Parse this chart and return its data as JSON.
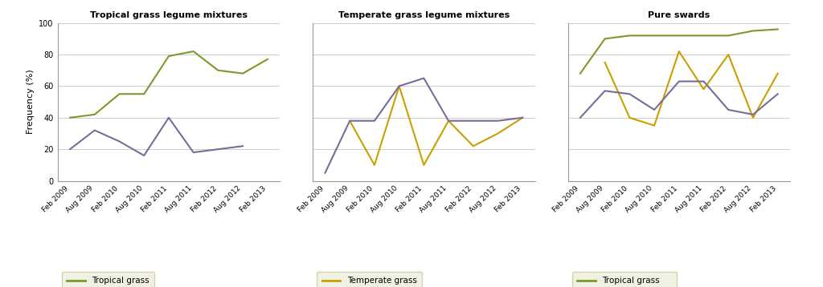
{
  "x_labels": [
    "Feb 2009",
    "Aug 2009",
    "Feb 2010",
    "Aug 2010",
    "Feb 2011",
    "Aug 2011",
    "Feb 2012",
    "Aug 2012",
    "Feb 2013"
  ],
  "x_positions": [
    0,
    1,
    2,
    3,
    4,
    5,
    6,
    7,
    8
  ],
  "subplot1": {
    "title": "Tropical grass legume mixtures",
    "tropical_grass": {
      "x": [
        0,
        1,
        2,
        3,
        4,
        5,
        6,
        7,
        8
      ],
      "y": [
        40,
        42,
        55,
        55,
        79,
        82,
        70,
        68,
        77
      ]
    },
    "lucerne": {
      "x": [
        0,
        1,
        2,
        3,
        4,
        5,
        6,
        7
      ],
      "y": [
        20,
        32,
        25,
        16,
        40,
        18,
        20,
        22
      ]
    }
  },
  "subplot2": {
    "title": "Temperate grass legume mixtures",
    "temperate_grass": {
      "x": [
        1,
        2,
        3,
        4,
        5,
        6,
        7,
        8
      ],
      "y": [
        38,
        10,
        60,
        10,
        38,
        22,
        30,
        40
      ]
    },
    "lucerne": {
      "x": [
        0,
        1,
        2,
        3,
        4,
        5,
        6,
        7,
        8
      ],
      "y": [
        5,
        38,
        38,
        60,
        65,
        38,
        38,
        38,
        40
      ]
    }
  },
  "subplot3": {
    "title": "Pure swards",
    "tropical_grass": {
      "x": [
        0,
        1,
        2,
        3,
        4,
        5,
        6,
        7,
        8
      ],
      "y": [
        68,
        90,
        92,
        92,
        92,
        92,
        92,
        95,
        96
      ]
    },
    "temperate_grass": {
      "x": [
        1,
        2,
        3,
        4,
        5,
        6,
        7,
        8
      ],
      "y": [
        75,
        40,
        35,
        82,
        58,
        80,
        40,
        68
      ]
    },
    "lucerne": {
      "x": [
        0,
        1,
        2,
        3,
        4,
        5,
        6,
        7,
        8
      ],
      "y": [
        40,
        57,
        55,
        45,
        63,
        63,
        45,
        42,
        55
      ]
    }
  },
  "colors": {
    "tropical_grass": "#7a9a2a",
    "temperate_grass": "#c8a000",
    "lucerne": "#7a6b9a"
  },
  "ylim": [
    0,
    100
  ],
  "yticks": [
    0,
    20,
    40,
    60,
    80,
    100
  ],
  "ylabel": "Frequency (%)",
  "legend_bg": "#eeeedd",
  "legend_edge": "#cccc99",
  "background_color": "#ffffff",
  "grid_color": "#cccccc",
  "spine_color": "#999999"
}
